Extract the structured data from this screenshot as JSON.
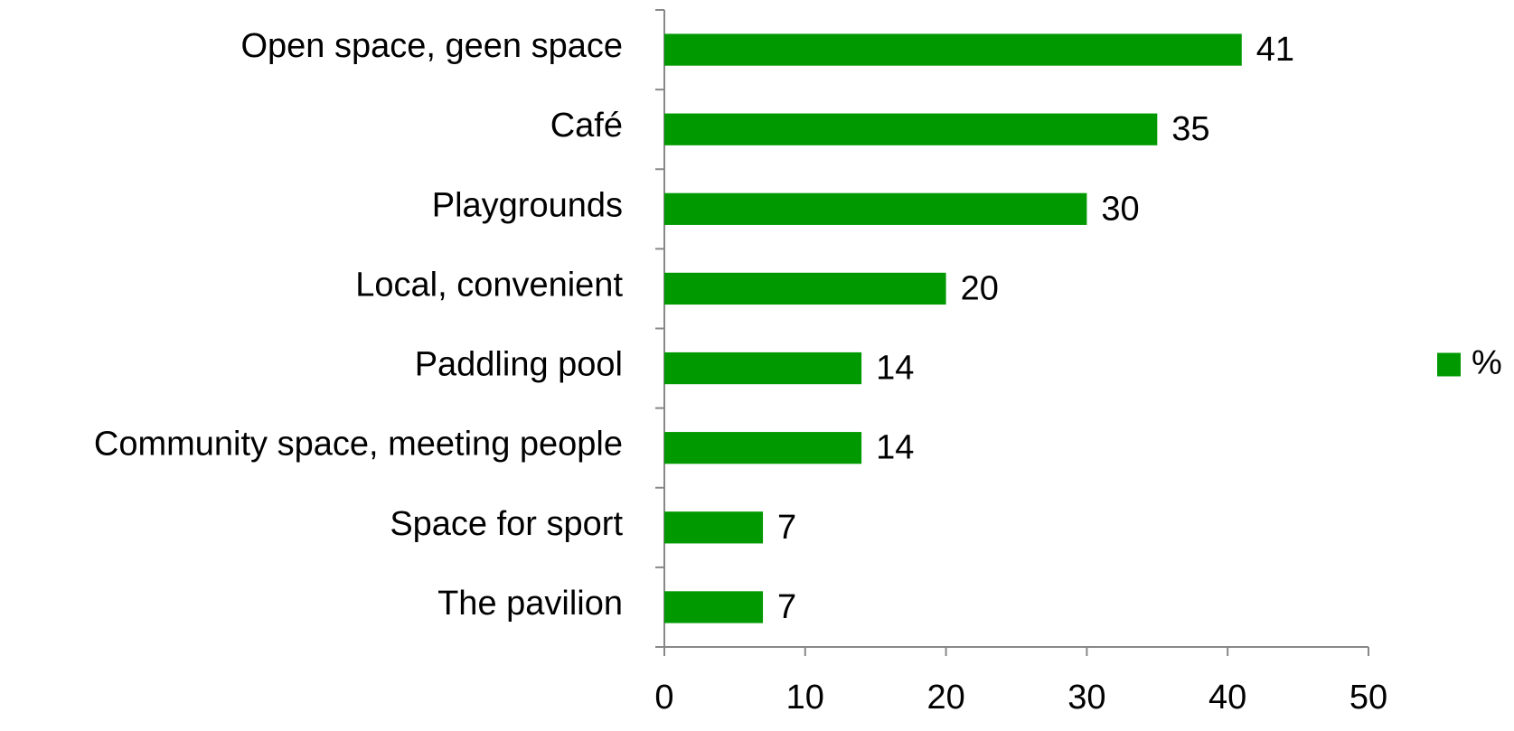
{
  "chart_data": {
    "type": "bar",
    "orientation": "horizontal",
    "categories": [
      "Open space, geen space",
      "Café",
      "Playgrounds",
      "Local, convenient",
      "Paddling pool",
      "Community space, meeting people",
      "Space for sport",
      "The pavilion"
    ],
    "series": [
      {
        "name": "%",
        "color": "#009900",
        "values": [
          41,
          35,
          30,
          20,
          14,
          14,
          7,
          7
        ]
      }
    ],
    "xlim": [
      0,
      50
    ],
    "xticks": [
      0,
      10,
      20,
      30,
      40,
      50
    ],
    "legend": "right"
  }
}
